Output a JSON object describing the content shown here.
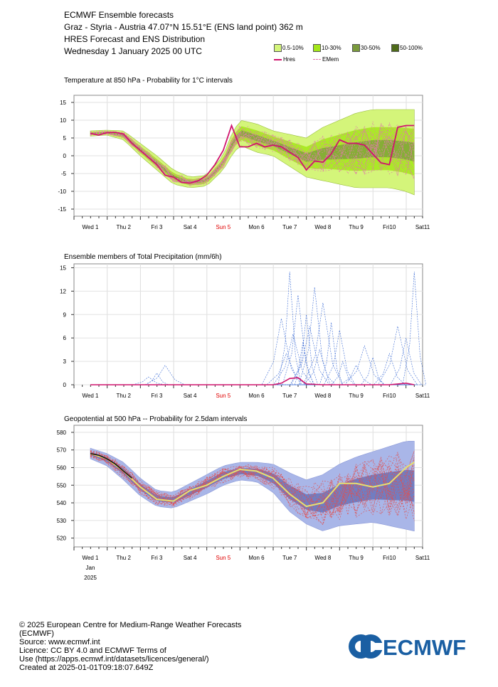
{
  "header": {
    "line1": "ECMWF Ensemble forecasts",
    "line2": "Graz - Styria - Austria 47.07°N 15.51°E (ENS land point) 362 m",
    "line3": "HRES Forecast and ENS Distribution",
    "line4": "Wednesday 1 January 2025 00 UTC"
  },
  "legend": {
    "items": [
      {
        "label": "0.5-10%",
        "color": "#d4f57a"
      },
      {
        "label": "10-30%",
        "color": "#a3e619"
      },
      {
        "label": "30-50%",
        "color": "#7a9a3c"
      },
      {
        "label": "50-100%",
        "color": "#4e6b1a"
      }
    ],
    "hres_label": "Hres",
    "emem_label": "EMem"
  },
  "colors": {
    "hres": "#d0146e",
    "emem": "#e07aa8",
    "precip_members": "#3a6ad4",
    "geo_band": "#a9b6e8",
    "geo_band_dark": "#5a65b0",
    "geo_members": "#e05050",
    "geo_mean": "#e8e070",
    "axis": "#333333",
    "sunday": "#e00000"
  },
  "days": [
    "Wed 1",
    "Thu 2",
    "Fri 3",
    "Sat 4",
    "Sun 5",
    "Mon 6",
    "Tue 7",
    "Wed 8",
    "Thu 9",
    "Fri10",
    "Sat11"
  ],
  "month_label": "Jan",
  "year_label": "2025",
  "footer": {
    "line1": "© 2025 European Centre for Medium-Range Weather Forecasts",
    "line2": "(ECMWF)",
    "line3": "Source: www.ecmwf.int",
    "line4": "Licence: CC BY 4.0 and ECMWF Terms of",
    "line5": "Use (https://apps.ecmwf.int/datasets/licences/general/)",
    "line6": "Created at 2025-01-01T09:18:07.649Z"
  },
  "logo_text": "ECMWF",
  "chart_data": [
    {
      "type": "area",
      "title": "Temperature at 850 hPa - Probability for 1°C intervals",
      "ylim": [
        -17,
        17
      ],
      "yticks": [
        -15,
        -10,
        -5,
        0,
        5,
        10,
        15
      ],
      "hres": {
        "name": "Hres",
        "x": [
          0,
          0.25,
          0.5,
          0.75,
          1,
          1.25,
          1.5,
          1.75,
          2,
          2.25,
          2.5,
          2.75,
          3,
          3.25,
          3.5,
          3.75,
          4,
          4.25,
          4.5,
          4.75,
          5,
          5.25,
          5.5,
          5.75,
          6,
          6.25,
          6.5,
          6.75,
          7,
          7.25,
          7.5,
          7.75,
          8,
          8.25,
          8.5,
          8.75,
          9,
          9.25,
          9.5,
          9.75
        ],
        "values": [
          6.3,
          5.8,
          6.5,
          6.6,
          6.1,
          3.5,
          1.5,
          -0.5,
          -2.5,
          -5.5,
          -6.0,
          -7.5,
          -7.7,
          -7.0,
          -5.5,
          -2.5,
          1.5,
          8.5,
          2.5,
          2.5,
          3.5,
          2.5,
          3.0,
          2.5,
          1.0,
          -0.5,
          -4.0,
          -1.5,
          -1.8,
          0.5,
          4.5,
          3.5,
          3.5,
          3.0,
          0.5,
          -2.0,
          -2.5,
          8.0,
          8.5,
          8.5
        ]
      },
      "band": {
        "x": [
          0,
          0.5,
          1,
          1.5,
          2,
          2.5,
          3,
          3.5,
          4,
          4.25,
          4.5,
          5,
          5.5,
          6,
          6.5,
          7,
          7.5,
          8,
          8.5,
          9,
          9.5,
          9.75
        ],
        "low": [
          5.5,
          5.8,
          4.5,
          0,
          -4,
          -8,
          -9,
          -8.5,
          -4,
          0,
          3,
          1,
          0,
          -3,
          -6,
          -7,
          -8,
          -9,
          -9,
          -9,
          -10,
          -11
        ],
        "high": [
          7,
          7.2,
          7,
          3.5,
          0,
          -4,
          -6,
          -5.5,
          0,
          6,
          10,
          9,
          7,
          6,
          5,
          8,
          10,
          12,
          13,
          13,
          13,
          13
        ]
      }
    },
    {
      "type": "line",
      "title": "Ensemble members of Total Precipitation (mm/6h)",
      "ylim": [
        0,
        15.5
      ],
      "yticks": [
        0,
        3,
        6,
        9,
        12,
        15
      ],
      "hres": {
        "name": "Hres",
        "x": [
          0,
          1,
          2,
          3,
          4,
          5,
          5.5,
          5.75,
          6.0,
          6.25,
          6.5,
          7,
          8,
          9,
          9.5,
          9.75
        ],
        "values": [
          0,
          0,
          0,
          0,
          0,
          0,
          0,
          0.2,
          0.8,
          0.9,
          0.1,
          0,
          0,
          0,
          0.2,
          0
        ]
      },
      "member_peaks": [
        {
          "x": 6.0,
          "peak": 14.5
        },
        {
          "x": 6.25,
          "peak": 11.5
        },
        {
          "x": 5.75,
          "peak": 8.5
        },
        {
          "x": 6.5,
          "peak": 9.0
        },
        {
          "x": 6.75,
          "peak": 12.5
        },
        {
          "x": 7.0,
          "peak": 10.5
        },
        {
          "x": 7.25,
          "peak": 8.0
        },
        {
          "x": 7.5,
          "peak": 7.0
        },
        {
          "x": 8.25,
          "peak": 5.0
        },
        {
          "x": 8.5,
          "peak": 3.5
        },
        {
          "x": 9.0,
          "peak": 4.0
        },
        {
          "x": 9.25,
          "peak": 7.5
        },
        {
          "x": 9.75,
          "peak": 14.5
        },
        {
          "x": 9.5,
          "peak": 6.0
        },
        {
          "x": 2.25,
          "peak": 2.5
        },
        {
          "x": 2.0,
          "peak": 1.5
        },
        {
          "x": 1.75,
          "peak": 1.0
        },
        {
          "x": 6.1,
          "peak": 6.5
        },
        {
          "x": 6.4,
          "peak": 5.5
        },
        {
          "x": 6.9,
          "peak": 4.5
        },
        {
          "x": 5.9,
          "peak": 4.0
        },
        {
          "x": 7.6,
          "peak": 3.0
        },
        {
          "x": 8.0,
          "peak": 2.5
        },
        {
          "x": 6.6,
          "peak": 7.5
        }
      ]
    },
    {
      "type": "area",
      "title": "Geopotential at 500 hPa -- Probability for 2.5dam intervals",
      "ylim": [
        515,
        584
      ],
      "yticks": [
        520,
        530,
        540,
        550,
        560,
        570,
        580
      ],
      "hres": {
        "name": "Hres",
        "x": [
          0,
          0.25,
          0.5,
          0.75,
          1,
          1.25,
          1.5,
          1.75,
          2,
          2.25,
          2.5,
          2.75,
          3,
          3.25,
          3.5,
          3.75,
          4,
          4.25,
          4.5,
          4.75,
          5,
          5.25,
          5.5,
          5.75,
          6,
          6.25,
          6.5,
          6.75,
          7,
          7.25,
          7.5,
          7.75,
          8,
          8.25,
          8.5,
          8.75,
          9,
          9.25,
          9.5,
          9.75
        ],
        "values": [
          568,
          567,
          565,
          562,
          558,
          554,
          549,
          544,
          542,
          541,
          541,
          544,
          547,
          549,
          550,
          551,
          555,
          558,
          559,
          559,
          558,
          556,
          554,
          550,
          545,
          541,
          538,
          537,
          540,
          546,
          551,
          552,
          551,
          550,
          549,
          549,
          551,
          555,
          560,
          562
        ]
      },
      "mean": {
        "x": [
          0,
          0.5,
          1,
          1.5,
          2,
          2.5,
          3,
          3.5,
          4,
          4.5,
          5,
          5.5,
          6,
          6.5,
          7,
          7.5,
          8,
          8.5,
          9,
          9.5,
          9.75
        ],
        "values": [
          568,
          565,
          558,
          549,
          542,
          541,
          547,
          550,
          555,
          559,
          558,
          554,
          545,
          538,
          540,
          551,
          551,
          549,
          551,
          560,
          563
        ]
      },
      "band": {
        "x": [
          0,
          0.5,
          1,
          1.5,
          2,
          2.5,
          3,
          3.5,
          4,
          4.5,
          5,
          5.5,
          6,
          6.5,
          7,
          7.5,
          8,
          8.5,
          9,
          9.5,
          9.75
        ],
        "low": [
          565,
          561,
          553,
          544,
          538,
          537,
          541,
          545,
          550,
          553,
          552,
          546,
          535,
          528,
          524,
          527,
          528,
          529,
          527,
          525,
          524
        ],
        "high": [
          571,
          568,
          563,
          554,
          547,
          546,
          551,
          556,
          561,
          563,
          563,
          562,
          557,
          553,
          556,
          562,
          566,
          569,
          572,
          575,
          575
        ]
      }
    }
  ]
}
